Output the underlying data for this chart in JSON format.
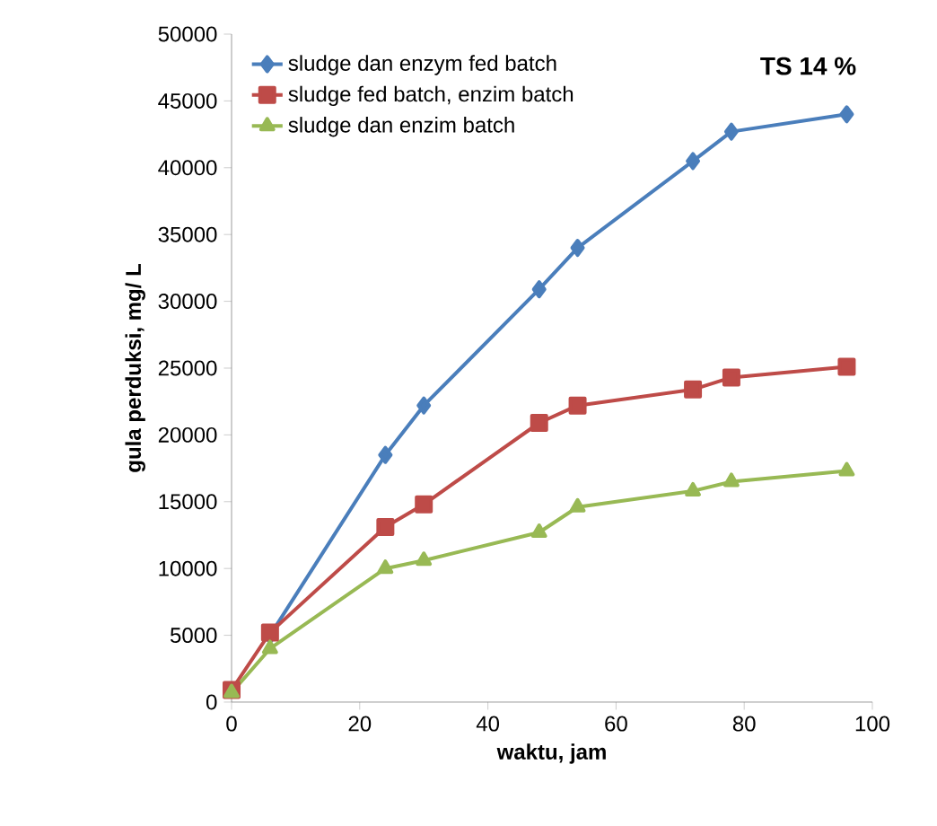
{
  "chart_data": {
    "type": "line",
    "xlabel": "waktu, jam",
    "ylabel": "gula perduksi, mg/ L",
    "annotations": [
      "TS 14 %"
    ],
    "x": [
      0,
      6,
      24,
      30,
      48,
      54,
      72,
      78,
      96
    ],
    "series": [
      {
        "name": "sludge dan enzym fed batch",
        "color": "#4a7ebb",
        "marker": "diamond",
        "values": [
          null,
          5000,
          18500,
          22200,
          30900,
          34000,
          40500,
          42700,
          44000
        ]
      },
      {
        "name": "sludge fed batch, enzim batch",
        "color": "#be4b48",
        "marker": "square",
        "values": [
          900,
          5200,
          13100,
          14800,
          20900,
          22200,
          23400,
          24300,
          25100
        ]
      },
      {
        "name": "sludge dan enzim batch",
        "color": "#98b954",
        "marker": "triangle",
        "values": [
          700,
          4000,
          10000,
          10600,
          12700,
          14600,
          15800,
          16500,
          17300
        ]
      }
    ],
    "xlim": [
      0,
      100
    ],
    "xticks": [
      0,
      20,
      40,
      60,
      80,
      100
    ],
    "ylim": [
      0,
      50000
    ],
    "yticks": [
      0,
      5000,
      10000,
      15000,
      20000,
      25000,
      30000,
      35000,
      40000,
      45000,
      50000
    ],
    "grid": false,
    "legend": "top left",
    "line_style": "solid"
  }
}
